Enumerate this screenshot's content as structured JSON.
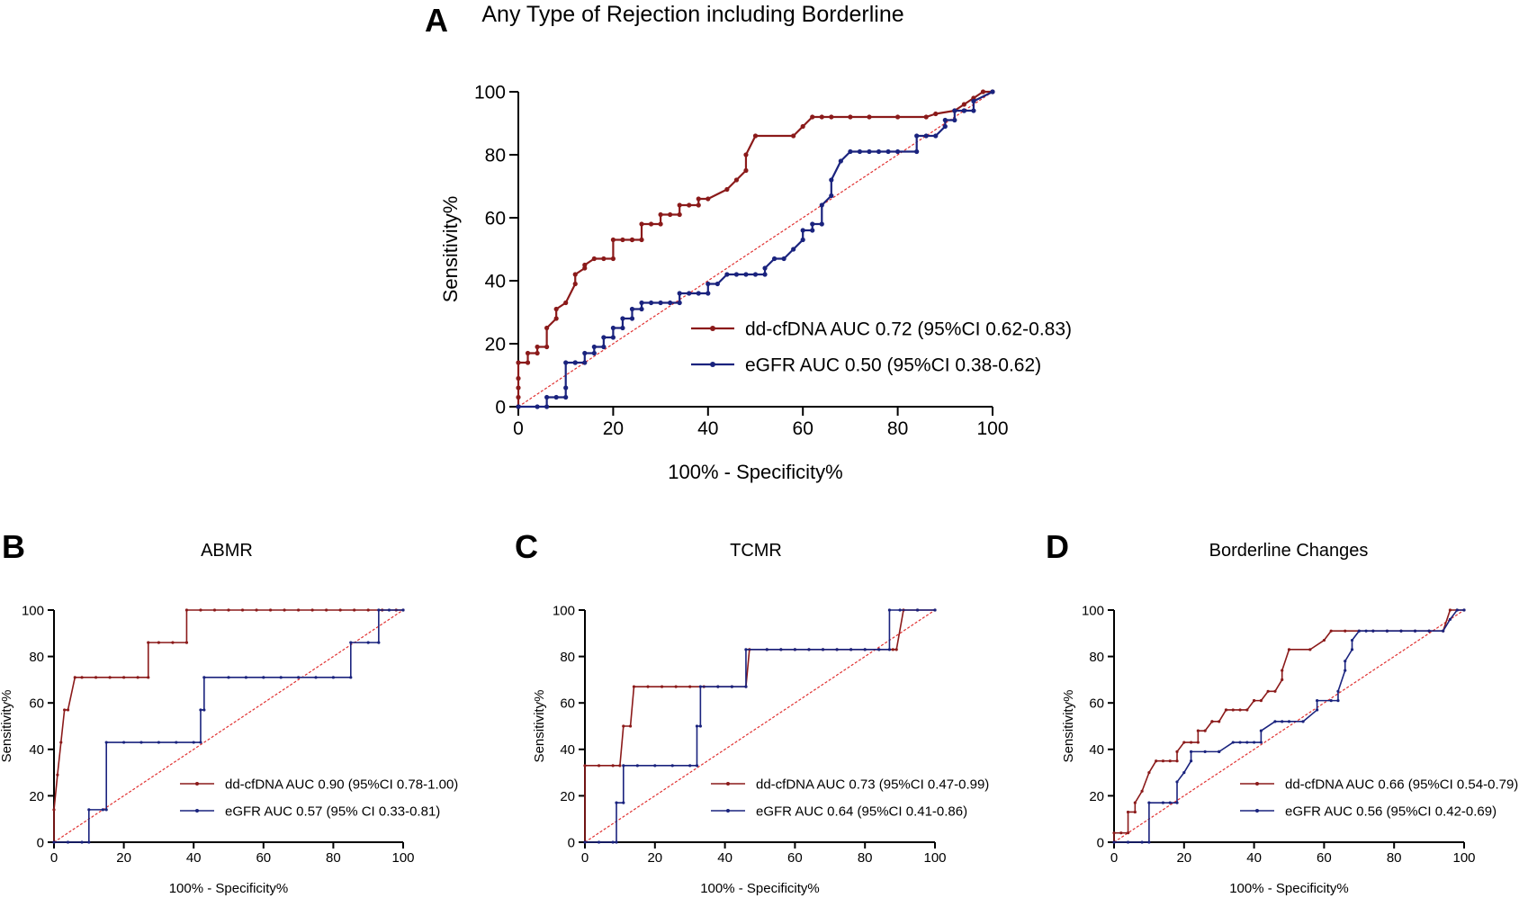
{
  "colors": {
    "ddcfdna": "#8b1a1a",
    "egfr": "#1a237e",
    "reference": "#e03030",
    "axis": "#000000"
  },
  "chart_data": [
    {
      "panel": "A",
      "type": "line",
      "title": "Any Type of Rejection including Borderline",
      "xlabel": "100% - Specificity%",
      "ylabel": "Sensitivity%",
      "xlim": [
        0,
        100
      ],
      "ylim": [
        0,
        100
      ],
      "xticks": [
        0,
        20,
        40,
        60,
        80,
        100
      ],
      "yticks": [
        0,
        20,
        40,
        60,
        80,
        100
      ],
      "grid": false,
      "legend_position": "lower-right",
      "series": [
        {
          "name": "dd-cfDNA AUC 0.72 (95%CI 0.62-0.83)",
          "color": "ddcfdna",
          "x": [
            0,
            0,
            0,
            0,
            0,
            2,
            2,
            4,
            4,
            6,
            6,
            8,
            8,
            10,
            12,
            12,
            14,
            14,
            16,
            18,
            20,
            20,
            22,
            24,
            24,
            26,
            26,
            28,
            30,
            30,
            32,
            34,
            34,
            36,
            38,
            38,
            40,
            44,
            46,
            48,
            48,
            50,
            58,
            60,
            62,
            64,
            66,
            70,
            74,
            80,
            86,
            88,
            92,
            94,
            96,
            98,
            100
          ],
          "y": [
            0,
            3,
            6,
            9,
            14,
            14,
            17,
            17,
            19,
            19,
            25,
            28,
            31,
            33,
            39,
            42,
            44,
            45,
            47,
            47,
            47,
            53,
            53,
            53,
            53,
            53,
            58,
            58,
            58,
            61,
            61,
            61,
            64,
            64,
            64,
            66,
            66,
            69,
            72,
            75,
            80,
            86,
            86,
            89,
            92,
            92,
            92,
            92,
            92,
            92,
            92,
            93,
            94,
            96,
            98,
            100,
            100
          ]
        },
        {
          "name": "eGFR AUC 0.50 (95%CI 0.38-0.62)",
          "color": "egfr",
          "x": [
            0,
            4,
            6,
            6,
            8,
            10,
            10,
            10,
            12,
            12,
            14,
            14,
            16,
            16,
            18,
            18,
            20,
            20,
            22,
            22,
            24,
            24,
            26,
            26,
            28,
            30,
            32,
            34,
            34,
            36,
            38,
            40,
            40,
            42,
            44,
            46,
            48,
            50,
            52,
            52,
            54,
            56,
            58,
            60,
            60,
            62,
            62,
            64,
            64,
            66,
            66,
            68,
            70,
            72,
            74,
            76,
            78,
            80,
            84,
            84,
            86,
            88,
            90,
            90,
            92,
            92,
            94,
            94,
            96,
            96,
            100
          ],
          "y": [
            0,
            0,
            0,
            3,
            3,
            3,
            6,
            14,
            14,
            14,
            14,
            17,
            17,
            19,
            19,
            22,
            22,
            25,
            25,
            28,
            28,
            31,
            31,
            33,
            33,
            33,
            33,
            33,
            36,
            36,
            36,
            36,
            39,
            39,
            42,
            42,
            42,
            42,
            42,
            44,
            47,
            47,
            50,
            53,
            56,
            56,
            58,
            58,
            64,
            67,
            72,
            78,
            81,
            81,
            81,
            81,
            81,
            81,
            81,
            86,
            86,
            86,
            89,
            91,
            91,
            94,
            94,
            94,
            94,
            97,
            100
          ]
        }
      ]
    },
    {
      "panel": "B",
      "type": "line",
      "title": "ABMR",
      "xlabel": "100% - Specificity%",
      "ylabel": "Sensitivity%",
      "xlim": [
        0,
        100
      ],
      "ylim": [
        0,
        100
      ],
      "xticks": [
        0,
        20,
        40,
        60,
        80,
        100
      ],
      "yticks": [
        0,
        20,
        40,
        60,
        80,
        100
      ],
      "grid": false,
      "legend_position": "lower-right",
      "series": [
        {
          "name": "dd-cfDNA AUC 0.90 (95%CI 0.78-1.00)",
          "color": "ddcfdna",
          "x": [
            0,
            0,
            1,
            2,
            3,
            4,
            6,
            8,
            12,
            16,
            20,
            24,
            27,
            27,
            30,
            34,
            38,
            38,
            42,
            46,
            50,
            54,
            58,
            62,
            66,
            70,
            74,
            78,
            82,
            86,
            90,
            94,
            98,
            100
          ],
          "y": [
            0,
            14,
            29,
            43,
            57,
            57,
            71,
            71,
            71,
            71,
            71,
            71,
            71,
            86,
            86,
            86,
            86,
            100,
            100,
            100,
            100,
            100,
            100,
            100,
            100,
            100,
            100,
            100,
            100,
            100,
            100,
            100,
            100,
            100
          ]
        },
        {
          "name": "eGFR  AUC 0.57 (95% CI 0.33-0.81)",
          "color": "egfr",
          "x": [
            0,
            4,
            8,
            10,
            10,
            14,
            15,
            15,
            20,
            25,
            30,
            35,
            40,
            42,
            42,
            43,
            43,
            50,
            55,
            60,
            65,
            70,
            75,
            80,
            85,
            85,
            90,
            93,
            93,
            96,
            100
          ],
          "y": [
            0,
            0,
            0,
            0,
            14,
            14,
            14,
            43,
            43,
            43,
            43,
            43,
            43,
            43,
            57,
            57,
            71,
            71,
            71,
            71,
            71,
            71,
            71,
            71,
            71,
            86,
            86,
            86,
            100,
            100,
            100
          ]
        }
      ]
    },
    {
      "panel": "C",
      "type": "line",
      "title": "TCMR",
      "xlabel": "100% - Specificity%",
      "ylabel": "Sensitivity%",
      "xlim": [
        0,
        100
      ],
      "ylim": [
        0,
        100
      ],
      "xticks": [
        0,
        20,
        40,
        60,
        80,
        100
      ],
      "yticks": [
        0,
        20,
        40,
        60,
        80,
        100
      ],
      "grid": false,
      "legend_position": "lower-right",
      "series": [
        {
          "name": "dd-cfDNA AUC 0.73 (95%CI 0.47-0.99)",
          "color": "ddcfdna",
          "x": [
            0,
            0,
            4,
            8,
            10,
            11,
            13,
            14,
            18,
            22,
            26,
            30,
            34,
            38,
            42,
            46,
            47,
            52,
            56,
            60,
            64,
            68,
            72,
            76,
            80,
            84,
            88,
            89,
            91,
            95,
            100
          ],
          "y": [
            0,
            33,
            33,
            33,
            33,
            50,
            50,
            67,
            67,
            67,
            67,
            67,
            67,
            67,
            67,
            67,
            83,
            83,
            83,
            83,
            83,
            83,
            83,
            83,
            83,
            83,
            83,
            83,
            100,
            100,
            100
          ]
        },
        {
          "name": "eGFR AUC 0.64 (95%CI 0.41-0.86)",
          "color": "egfr",
          "x": [
            0,
            4,
            8,
            9,
            9,
            11,
            11,
            15,
            20,
            25,
            30,
            32,
            32,
            33,
            33,
            38,
            42,
            46,
            46,
            52,
            56,
            60,
            64,
            68,
            72,
            76,
            80,
            84,
            87,
            87,
            90,
            95,
            100
          ],
          "y": [
            0,
            0,
            0,
            0,
            17,
            17,
            33,
            33,
            33,
            33,
            33,
            33,
            50,
            50,
            67,
            67,
            67,
            67,
            83,
            83,
            83,
            83,
            83,
            83,
            83,
            83,
            83,
            83,
            83,
            100,
            100,
            100,
            100
          ]
        }
      ]
    },
    {
      "panel": "D",
      "type": "line",
      "title": "Borderline Changes",
      "xlabel": "100% - Specificity%",
      "ylabel": "Sensitivity%",
      "xlim": [
        0,
        100
      ],
      "ylim": [
        0,
        100
      ],
      "xticks": [
        0,
        20,
        40,
        60,
        80,
        100
      ],
      "yticks": [
        0,
        20,
        40,
        60,
        80,
        100
      ],
      "grid": false,
      "legend_position": "lower-right",
      "series": [
        {
          "name": "dd-cfDNA AUC 0.66 (95%CI 0.54-0.79)",
          "color": "ddcfdna",
          "x": [
            0,
            0,
            2,
            4,
            4,
            6,
            6,
            8,
            10,
            12,
            14,
            16,
            18,
            18,
            20,
            22,
            24,
            24,
            26,
            28,
            28,
            30,
            32,
            32,
            34,
            36,
            38,
            40,
            40,
            42,
            44,
            46,
            48,
            48,
            50,
            56,
            60,
            62,
            66,
            70,
            74,
            78,
            82,
            86,
            90,
            94,
            96,
            98,
            100
          ],
          "y": [
            0,
            4,
            4,
            4,
            13,
            13,
            17,
            22,
            30,
            35,
            35,
            35,
            35,
            39,
            43,
            43,
            43,
            48,
            48,
            52,
            52,
            52,
            57,
            57,
            57,
            57,
            57,
            61,
            61,
            61,
            65,
            65,
            70,
            74,
            83,
            83,
            87,
            91,
            91,
            91,
            91,
            91,
            91,
            91,
            91,
            91,
            100,
            100,
            100
          ]
        },
        {
          "name": "eGFR AUC 0.56 (95%CI 0.42-0.69)",
          "color": "egfr",
          "x": [
            0,
            4,
            8,
            10,
            10,
            14,
            16,
            18,
            18,
            20,
            22,
            22,
            26,
            30,
            30,
            34,
            36,
            38,
            40,
            42,
            42,
            46,
            48,
            50,
            54,
            58,
            58,
            62,
            64,
            64,
            66,
            66,
            68,
            68,
            70,
            72,
            74,
            78,
            82,
            86,
            90,
            94,
            96,
            98,
            100
          ],
          "y": [
            0,
            0,
            0,
            0,
            17,
            17,
            17,
            17,
            26,
            30,
            35,
            39,
            39,
            39,
            39,
            43,
            43,
            43,
            43,
            43,
            48,
            52,
            52,
            52,
            52,
            57,
            61,
            61,
            61,
            65,
            74,
            78,
            83,
            87,
            91,
            91,
            91,
            91,
            91,
            91,
            91,
            91,
            96,
            100,
            100
          ]
        }
      ]
    }
  ]
}
